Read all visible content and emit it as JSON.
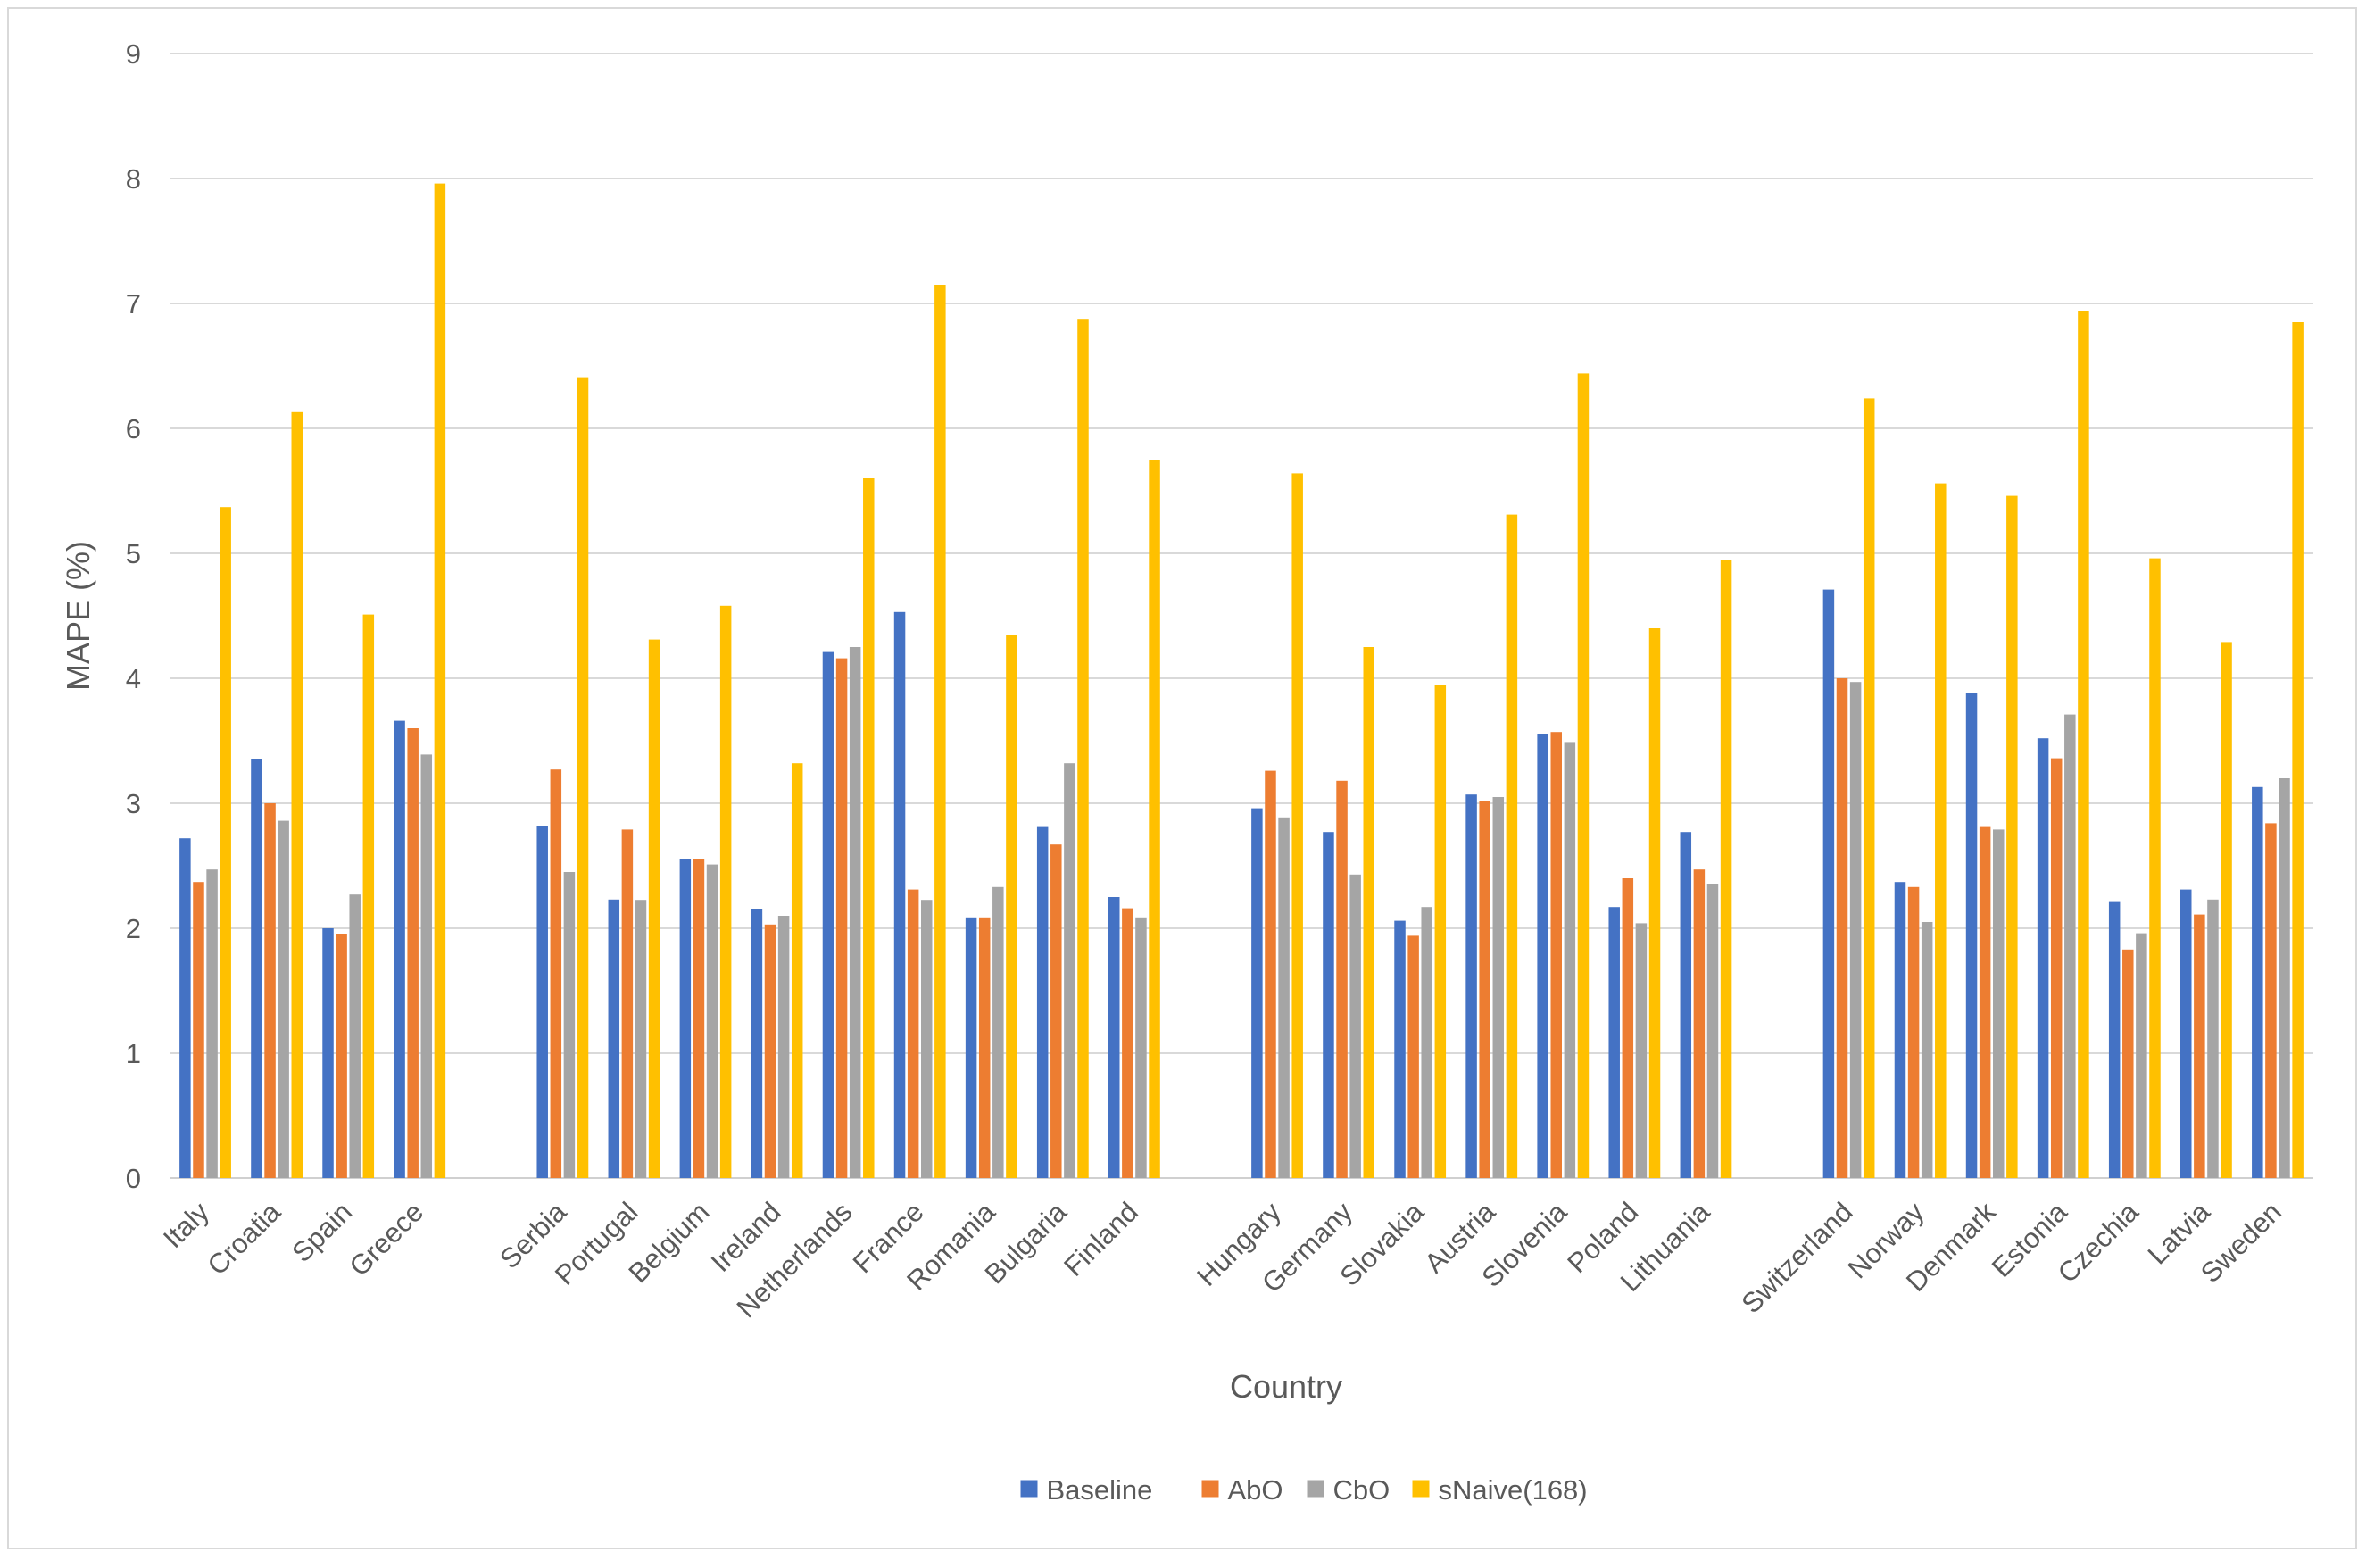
{
  "chart_data": {
    "type": "bar",
    "title": "",
    "xlabel": "Country",
    "ylabel": "MAPE (%)",
    "ylim": [
      0,
      9
    ],
    "yticks": [
      0,
      1,
      2,
      3,
      4,
      5,
      6,
      7,
      8,
      9
    ],
    "grid": true,
    "legend_position": "bottom",
    "groups": [
      [
        "Italy",
        "Croatia",
        "Spain",
        "Greece"
      ],
      [
        "Serbia",
        "Portugal",
        "Belgium",
        "Ireland",
        "Netherlands",
        "France",
        "Romania",
        "Bulgaria",
        "Finland"
      ],
      [
        "Hungary",
        "Germany",
        "Slovakia",
        "Austria",
        "Slovenia",
        "Poland",
        "Lithuania"
      ],
      [
        "Switzerland",
        "Norway",
        "Denmark",
        "Estonia",
        "Czechia",
        "Latvia",
        "Sweden"
      ]
    ],
    "categories": [
      "Italy",
      "Croatia",
      "Spain",
      "Greece",
      "Serbia",
      "Portugal",
      "Belgium",
      "Ireland",
      "Netherlands",
      "France",
      "Romania",
      "Bulgaria",
      "Finland",
      "Hungary",
      "Germany",
      "Slovakia",
      "Austria",
      "Slovenia",
      "Poland",
      "Lithuania",
      "Switzerland",
      "Norway",
      "Denmark",
      "Estonia",
      "Czechia",
      "Latvia",
      "Sweden"
    ],
    "series": [
      {
        "name": "Baseline",
        "color": "#4472c4",
        "values": [
          2.72,
          3.35,
          2.0,
          3.66,
          2.82,
          2.23,
          2.55,
          2.15,
          4.21,
          4.53,
          2.08,
          2.81,
          2.25,
          2.96,
          2.77,
          2.06,
          3.07,
          3.55,
          2.17,
          2.77,
          4.71,
          2.37,
          3.88,
          3.52,
          2.21,
          2.31,
          3.13
        ]
      },
      {
        "name": "AbO",
        "color": "#ed7d31",
        "values": [
          2.37,
          3.0,
          1.95,
          3.6,
          3.27,
          2.79,
          2.55,
          2.03,
          4.16,
          2.31,
          2.08,
          2.67,
          2.16,
          3.26,
          3.18,
          1.94,
          3.02,
          3.57,
          2.4,
          2.47,
          4.0,
          2.33,
          2.81,
          3.36,
          1.83,
          2.11,
          2.84
        ]
      },
      {
        "name": "CbO",
        "color": "#a5a5a5",
        "values": [
          2.47,
          2.86,
          2.27,
          3.39,
          2.45,
          2.22,
          2.51,
          2.1,
          4.25,
          2.22,
          2.33,
          3.32,
          2.08,
          2.88,
          2.43,
          2.17,
          3.05,
          3.49,
          2.04,
          2.35,
          3.97,
          2.05,
          2.79,
          3.71,
          1.96,
          2.23,
          3.2
        ]
      },
      {
        "name": "sNaive(168)",
        "color": "#ffc000",
        "values": [
          5.37,
          6.13,
          4.51,
          7.96,
          6.41,
          4.31,
          4.58,
          3.32,
          5.6,
          7.15,
          4.35,
          6.87,
          5.75,
          5.64,
          4.25,
          3.95,
          5.31,
          6.44,
          4.4,
          4.95,
          6.24,
          5.56,
          5.46,
          6.94,
          4.96,
          4.29,
          6.85
        ]
      }
    ]
  }
}
